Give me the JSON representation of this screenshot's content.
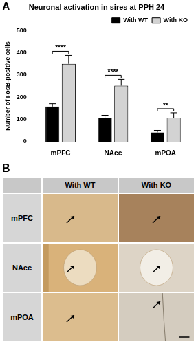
{
  "chart_data": {
    "type": "bar",
    "title": "Neuronal activation in sires at PPH 24",
    "y_label": "Number of FosB-positive cells",
    "categories": [
      "mPFC",
      "NAcc",
      "mPOA"
    ],
    "series": [
      {
        "name": "With WT",
        "color": "#000000",
        "values": [
          158,
          108,
          42
        ],
        "errors": [
          13,
          11,
          9
        ]
      },
      {
        "name": "With KO",
        "color": "#d3d3d3",
        "values": [
          350,
          252,
          108
        ],
        "errors": [
          38,
          28,
          22
        ]
      }
    ],
    "annotations": [
      {
        "category": "mPFC",
        "label": "****"
      },
      {
        "category": "NAcc",
        "label": "****"
      },
      {
        "category": "mPOA",
        "label": "**"
      }
    ],
    "ylim": [
      0,
      500
    ],
    "yticks": [
      0,
      100,
      200,
      300,
      400,
      500
    ],
    "grid": false,
    "legend": "top right",
    "data_labels": false
  },
  "panel_labels": [
    "A",
    "B"
  ],
  "image_grid": {
    "columns": [
      "With WT",
      "With KO"
    ],
    "rows": [
      "mPFC",
      "NAcc",
      "mPOA"
    ]
  }
}
